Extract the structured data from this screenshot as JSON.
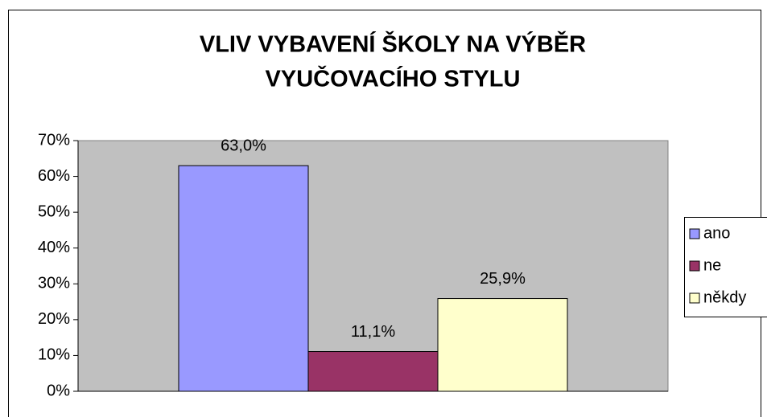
{
  "chart_data": {
    "type": "bar",
    "title": [
      "VLIV VYBAVENÍ ŠKOLY NA VÝBĚR",
      "VYUČOVACÍHO STYLU"
    ],
    "categories": [
      null
    ],
    "series": [
      {
        "name": "ano",
        "color": "#9999ff",
        "values": [
          63.0
        ],
        "value_labels": [
          "63,0%"
        ]
      },
      {
        "name": "ne",
        "color": "#993366",
        "values": [
          11.1
        ],
        "value_labels": [
          "11,1%"
        ]
      },
      {
        "name": "někdy",
        "color": "#ffffcc",
        "values": [
          25.9
        ],
        "value_labels": [
          "25,9%"
        ]
      }
    ],
    "ylim": [
      0,
      70
    ],
    "yticks": [
      {
        "value": 0,
        "label": "0%"
      },
      {
        "value": 10,
        "label": "10%"
      },
      {
        "value": 20,
        "label": "20%"
      },
      {
        "value": 30,
        "label": "30%"
      },
      {
        "value": 40,
        "label": "40%"
      },
      {
        "value": 50,
        "label": "50%"
      },
      {
        "value": 60,
        "label": "60%"
      },
      {
        "value": 70,
        "label": "70%"
      }
    ],
    "grid": false,
    "legend": "right"
  }
}
